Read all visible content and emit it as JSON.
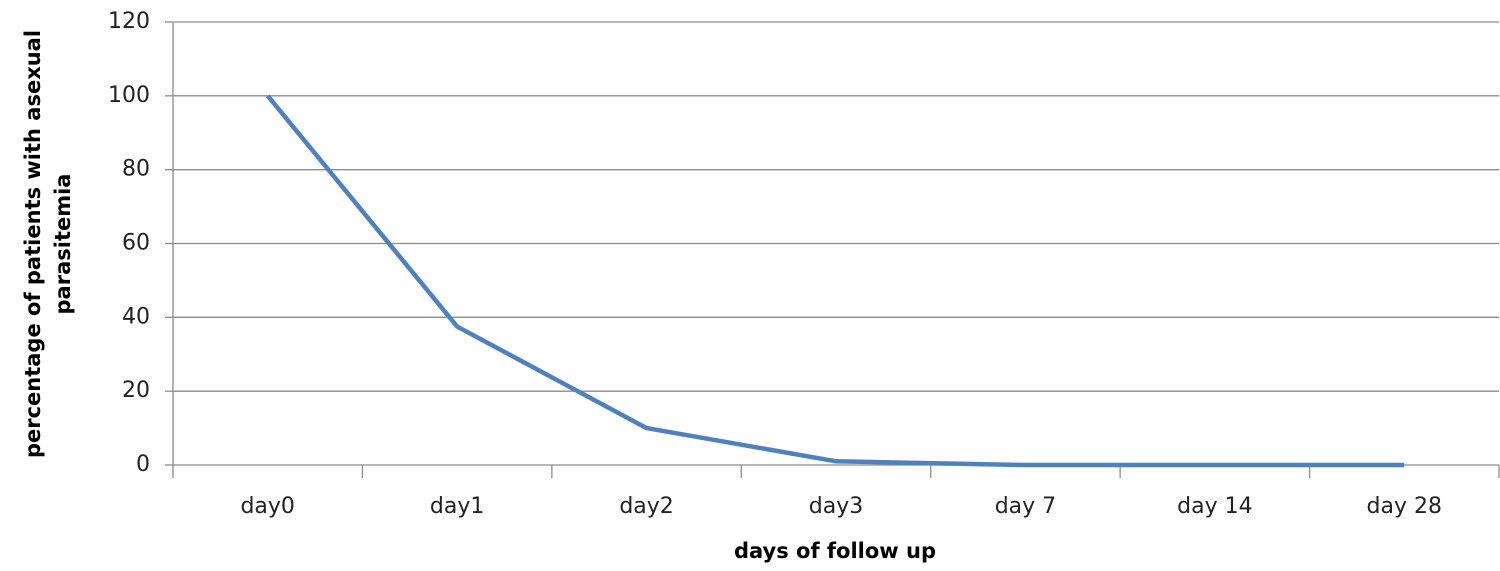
{
  "chart_data": {
    "type": "line",
    "xlabel": "days of follow up",
    "ylabel": [
      "percentage of patients with asexual",
      "parasitemia"
    ],
    "categories": [
      "day0",
      "day1",
      "day2",
      "day3",
      "day 7",
      "day 14",
      "day 28"
    ],
    "series": [
      {
        "name": "percentage of patients with asexual parasitemia",
        "color": "#4f81bd",
        "values": [
          100,
          37.5,
          10,
          1,
          0,
          0,
          0
        ]
      }
    ],
    "ylim": [
      0,
      120
    ],
    "yticks": [
      0,
      20,
      40,
      60,
      80,
      100,
      120
    ],
    "grid": true
  }
}
